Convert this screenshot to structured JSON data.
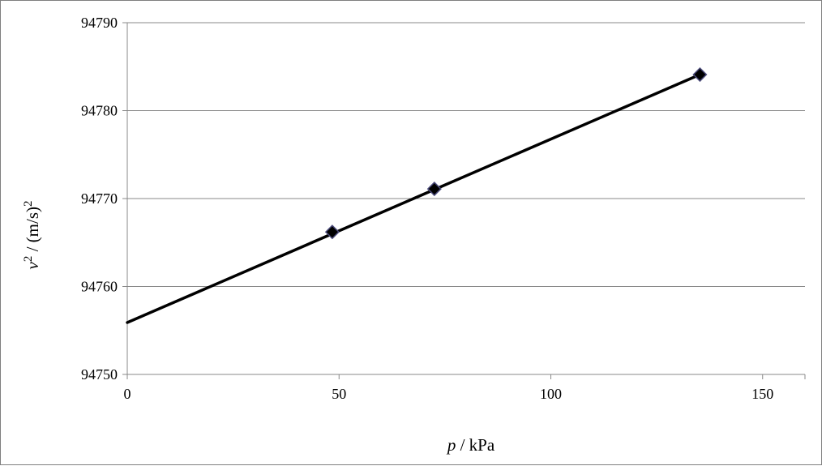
{
  "chart_data": {
    "type": "scatter",
    "title": "",
    "xlabel": {
      "symbol": "p",
      "unit": " / kPa"
    },
    "ylabel": {
      "symbol": "v",
      "sup1": "2",
      "unit": " / (m/s)",
      "sup2": "2"
    },
    "xlim": [
      0,
      160
    ],
    "ylim": [
      94750,
      94790
    ],
    "xticks": [
      0,
      50,
      100,
      150
    ],
    "yticks": [
      94750,
      94760,
      94770,
      94780,
      94790
    ],
    "grid": "horizontal",
    "legend": "none",
    "series": [
      {
        "marker": "diamond",
        "x": [
          48.4,
          72.5,
          135.2
        ],
        "y": [
          94766.2,
          94771.1,
          94784.1
        ]
      }
    ],
    "trendline": {
      "type": "linear",
      "x": [
        0,
        135.2
      ],
      "y": [
        94755.9,
        94784.1
      ]
    },
    "colors": {
      "marker_fill": "#000000",
      "marker_edge": "#4a4a7a",
      "line": "#000000",
      "grid": "#888888"
    }
  }
}
